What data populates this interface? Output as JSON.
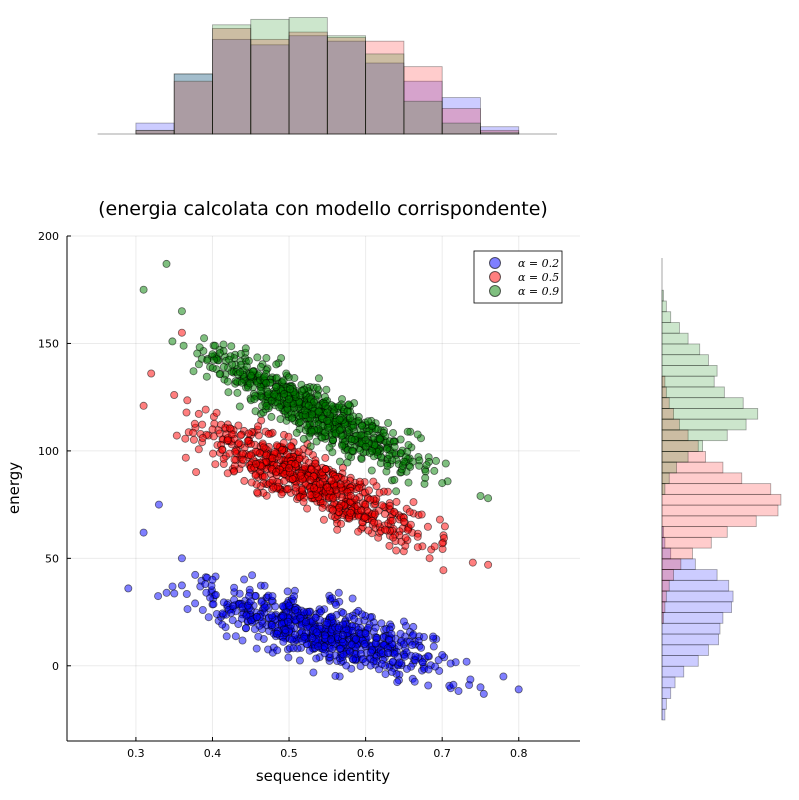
{
  "chart_data": {
    "type": "scatter",
    "title": "(energia calcolata con modello corrispondente)",
    "xlabel": "sequence identity",
    "ylabel": "energy",
    "xlim": [
      0.21,
      0.88
    ],
    "ylim": [
      -35,
      200
    ],
    "xticks": [
      0.3,
      0.4,
      0.5,
      0.6,
      0.7,
      0.8
    ],
    "yticks": [
      0,
      50,
      100,
      150,
      200
    ],
    "xtick_labels": [
      "0.3",
      "0.4",
      "0.5",
      "0.6",
      "0.7",
      "0.8"
    ],
    "ytick_labels": [
      "0",
      "50",
      "100",
      "150",
      "200"
    ],
    "grid": true,
    "legend_position": "top-right",
    "series": [
      {
        "name": "α = 0.2",
        "color": "#0000ff",
        "x_range": [
          0.29,
          0.8
        ],
        "intercept": 67,
        "slope": -94,
        "spread": 11,
        "sample_points": [
          [
            0.29,
            36
          ],
          [
            0.31,
            62
          ],
          [
            0.33,
            75
          ],
          [
            0.36,
            50
          ],
          [
            0.4,
            40
          ],
          [
            0.45,
            30
          ],
          [
            0.5,
            28
          ],
          [
            0.55,
            20
          ],
          [
            0.6,
            15
          ],
          [
            0.65,
            10
          ],
          [
            0.7,
            5
          ],
          [
            0.75,
            -10
          ],
          [
            0.78,
            -5
          ],
          [
            0.8,
            -11
          ]
        ]
      },
      {
        "name": "α = 0.5",
        "color": "#ff0000",
        "x_range": [
          0.3,
          0.76
        ],
        "intercept": 171,
        "slope": -162,
        "spread": 10,
        "sample_points": [
          [
            0.31,
            121
          ],
          [
            0.32,
            136
          ],
          [
            0.35,
            126
          ],
          [
            0.36,
            155
          ],
          [
            0.4,
            110
          ],
          [
            0.45,
            98
          ],
          [
            0.5,
            92
          ],
          [
            0.55,
            83
          ],
          [
            0.6,
            75
          ],
          [
            0.65,
            67
          ],
          [
            0.7,
            57
          ],
          [
            0.74,
            48
          ],
          [
            0.76,
            47
          ]
        ]
      },
      {
        "name": "α = 0.9",
        "color": "#008000",
        "x_range": [
          0.31,
          0.76
        ],
        "intercept": 216,
        "slope": -184,
        "spread": 9,
        "sample_points": [
          [
            0.31,
            175
          ],
          [
            0.34,
            187
          ],
          [
            0.36,
            165
          ],
          [
            0.4,
            145
          ],
          [
            0.45,
            135
          ],
          [
            0.5,
            124
          ],
          [
            0.55,
            114
          ],
          [
            0.6,
            105
          ],
          [
            0.65,
            95
          ],
          [
            0.7,
            85
          ],
          [
            0.75,
            79
          ],
          [
            0.76,
            78
          ]
        ]
      }
    ],
    "marginal_x_histogram": {
      "bin_edges": [
        0.3,
        0.35,
        0.4,
        0.45,
        0.5,
        0.55,
        0.6,
        0.65,
        0.7,
        0.75,
        0.8
      ],
      "counts": [
        [
          6,
          33,
          52,
          49,
          54,
          51,
          39,
          29,
          20,
          4
        ],
        [
          2,
          29,
          58,
          52,
          56,
          53,
          51,
          37,
          14,
          2
        ],
        [
          2,
          33,
          60,
          63,
          64,
          54,
          44,
          18,
          6,
          1
        ]
      ]
    },
    "marginal_y_histogram": {
      "bin_edges": [
        -25,
        -20,
        -15,
        -10,
        -5,
        0,
        5,
        10,
        15,
        20,
        25,
        30,
        35,
        40,
        45,
        50,
        55,
        60,
        65,
        70,
        75,
        80,
        85,
        90,
        95,
        100,
        105,
        110,
        115,
        120,
        125,
        130,
        135,
        140,
        145,
        150,
        155,
        160,
        165,
        170,
        175,
        180,
        185,
        190
      ],
      "counts": [
        [
          2,
          3,
          6,
          9,
          15,
          25,
          32,
          39,
          40,
          42,
          48,
          49,
          46,
          38,
          23,
          6,
          2,
          1,
          0,
          0,
          0,
          0,
          0,
          0,
          0,
          0,
          0,
          0,
          0,
          0,
          0,
          0,
          0,
          0,
          0,
          0,
          0,
          0,
          0,
          0,
          0,
          0,
          0
        ],
        [
          0,
          0,
          0,
          0,
          0,
          0,
          0,
          0,
          0,
          1,
          2,
          3,
          5,
          8,
          13,
          21,
          34,
          45,
          65,
          80,
          82,
          75,
          55,
          42,
          30,
          25,
          18,
          12,
          8,
          5,
          3,
          2,
          0,
          0,
          0,
          0,
          0,
          0,
          0,
          0,
          0,
          0,
          0
        ],
        [
          0,
          0,
          0,
          0,
          0,
          0,
          0,
          0,
          0,
          0,
          0,
          0,
          0,
          0,
          0,
          0,
          0,
          0,
          0,
          0,
          0,
          2,
          5,
          10,
          18,
          28,
          45,
          58,
          66,
          56,
          43,
          36,
          38,
          32,
          26,
          18,
          12,
          6,
          3,
          1,
          0,
          0,
          0
        ]
      ]
    }
  }
}
